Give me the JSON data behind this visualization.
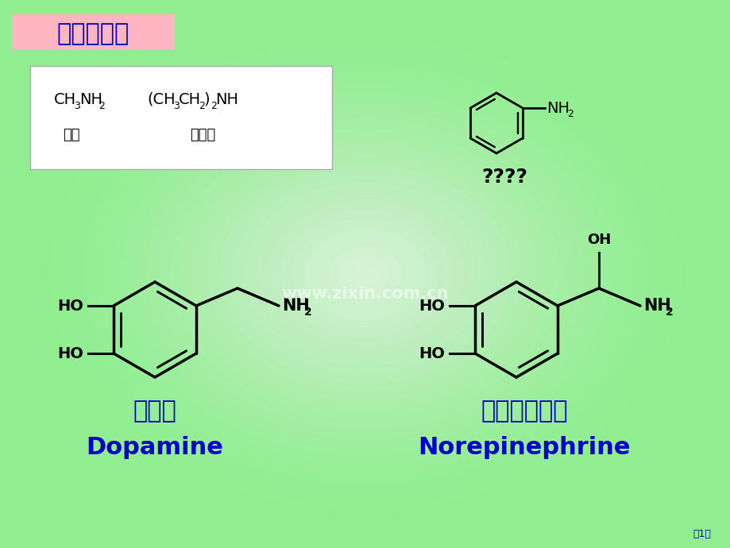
{
  "bg_color": "#90EE90",
  "gradient_center": "#DFFFDF",
  "title_text": "胺类化合物",
  "title_bg": "#FFB6C1",
  "title_color": "#0000CC",
  "title_fontsize": 22,
  "box_bg": "#FFFFFF",
  "chinese_label1": "多巴胺",
  "chinese_label2": "去甲肾上腺素",
  "english_label1": "Dopamine",
  "english_label2": "Norepinephrine",
  "label_color": "#0000CC",
  "watermark": "www.zixin.com.cn",
  "watermark_color": "#B0C8B0",
  "page_text": "第1页",
  "page_color": "#0000CC",
  "question_marks": "????",
  "label_cn1": "甲胺",
  "label_cn2": "二乙胺"
}
